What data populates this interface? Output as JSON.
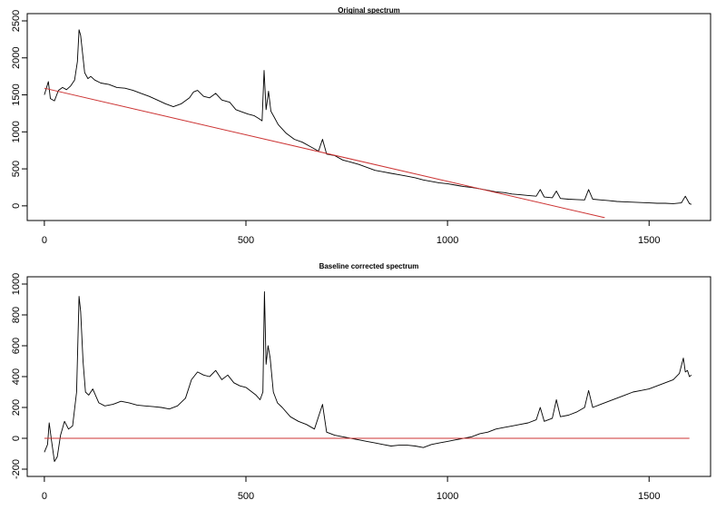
{
  "chart_data": [
    {
      "type": "line",
      "title": "Original spectrum",
      "xlabel": "",
      "ylabel": "",
      "xlim": [
        -20,
        1630
      ],
      "ylim": [
        -100,
        2500
      ],
      "xticks": [
        0,
        500,
        1000,
        1500
      ],
      "yticks": [
        0,
        500,
        1000,
        1500,
        2000,
        2500
      ],
      "series": [
        {
          "color": "#000000",
          "x": [
            0,
            10,
            15,
            25,
            35,
            45,
            55,
            65,
            75,
            82,
            86,
            90,
            95,
            100,
            108,
            115,
            125,
            140,
            160,
            180,
            200,
            220,
            240,
            260,
            280,
            300,
            320,
            340,
            360,
            370,
            380,
            395,
            410,
            425,
            440,
            460,
            475,
            490,
            505,
            520,
            532,
            540,
            545,
            550,
            556,
            562,
            570,
            580,
            600,
            620,
            640,
            660,
            680,
            690,
            700,
            720,
            740,
            760,
            780,
            800,
            820,
            840,
            860,
            880,
            900,
            920,
            940,
            960,
            980,
            1000,
            1020,
            1040,
            1060,
            1080,
            1100,
            1120,
            1140,
            1160,
            1180,
            1200,
            1220,
            1230,
            1240,
            1260,
            1270,
            1280,
            1300,
            1320,
            1340,
            1350,
            1360,
            1380,
            1400,
            1420,
            1440,
            1460,
            1480,
            1500,
            1520,
            1540,
            1560,
            1580,
            1590,
            1600,
            1605
          ],
          "y": [
            1500,
            1680,
            1450,
            1420,
            1560,
            1600,
            1570,
            1620,
            1700,
            1950,
            2380,
            2300,
            2050,
            1800,
            1720,
            1750,
            1700,
            1660,
            1640,
            1600,
            1590,
            1560,
            1520,
            1480,
            1430,
            1380,
            1340,
            1380,
            1460,
            1540,
            1560,
            1480,
            1460,
            1520,
            1430,
            1400,
            1300,
            1270,
            1240,
            1220,
            1180,
            1150,
            1830,
            1300,
            1550,
            1280,
            1200,
            1100,
            980,
            900,
            860,
            800,
            740,
            900,
            700,
            680,
            620,
            590,
            560,
            520,
            480,
            460,
            440,
            420,
            400,
            380,
            350,
            330,
            310,
            300,
            280,
            260,
            250,
            230,
            210,
            190,
            180,
            160,
            150,
            140,
            130,
            220,
            120,
            110,
            200,
            100,
            90,
            85,
            80,
            220,
            90,
            80,
            70,
            60,
            55,
            50,
            45,
            40,
            35,
            35,
            30,
            40,
            130,
            30,
            20
          ]
        },
        {
          "color": "#cc3333",
          "x": [
            0,
            1390
          ],
          "y": [
            1590,
            -160
          ]
        }
      ]
    },
    {
      "type": "line",
      "title": "Baseline corrected spectrum",
      "xlabel": "",
      "ylabel": "",
      "xlim": [
        -20,
        1630
      ],
      "ylim": [
        -200,
        1000
      ],
      "xticks": [
        0,
        500,
        1000,
        1500
      ],
      "yticks": [
        -200,
        0,
        200,
        400,
        600,
        800,
        1000
      ],
      "series": [
        {
          "color": "#000000",
          "x": [
            0,
            8,
            12,
            18,
            25,
            32,
            40,
            50,
            60,
            70,
            80,
            86,
            90,
            96,
            102,
            110,
            120,
            135,
            150,
            170,
            190,
            210,
            230,
            250,
            270,
            290,
            310,
            330,
            350,
            365,
            380,
            395,
            410,
            425,
            440,
            455,
            470,
            485,
            500,
            515,
            525,
            535,
            542,
            546,
            550,
            555,
            560,
            568,
            578,
            590,
            610,
            630,
            650,
            670,
            690,
            700,
            720,
            740,
            760,
            780,
            800,
            820,
            840,
            860,
            880,
            900,
            920,
            940,
            960,
            980,
            1000,
            1020,
            1040,
            1060,
            1080,
            1100,
            1120,
            1140,
            1160,
            1180,
            1200,
            1220,
            1230,
            1240,
            1260,
            1270,
            1280,
            1300,
            1320,
            1340,
            1350,
            1360,
            1380,
            1400,
            1420,
            1440,
            1460,
            1480,
            1500,
            1520,
            1540,
            1560,
            1575,
            1585,
            1590,
            1595,
            1600,
            1605
          ],
          "y": [
            -90,
            -40,
            100,
            -20,
            -150,
            -120,
            20,
            110,
            60,
            80,
            300,
            920,
            820,
            500,
            300,
            280,
            320,
            230,
            210,
            220,
            240,
            230,
            215,
            210,
            205,
            200,
            190,
            210,
            260,
            380,
            430,
            410,
            400,
            440,
            380,
            410,
            360,
            340,
            330,
            300,
            280,
            250,
            300,
            950,
            480,
            600,
            520,
            300,
            230,
            200,
            140,
            110,
            90,
            60,
            220,
            40,
            20,
            10,
            0,
            -10,
            -20,
            -30,
            -40,
            -50,
            -45,
            -45,
            -50,
            -60,
            -40,
            -30,
            -20,
            -10,
            0,
            10,
            30,
            40,
            60,
            70,
            80,
            90,
            100,
            120,
            200,
            110,
            130,
            250,
            140,
            150,
            170,
            200,
            310,
            200,
            220,
            240,
            260,
            280,
            300,
            310,
            320,
            340,
            360,
            380,
            420,
            520,
            430,
            440,
            400,
            410
          ]
        },
        {
          "color": "#cc3333",
          "x": [
            0,
            1600
          ],
          "y": [
            0,
            0
          ]
        }
      ]
    }
  ]
}
